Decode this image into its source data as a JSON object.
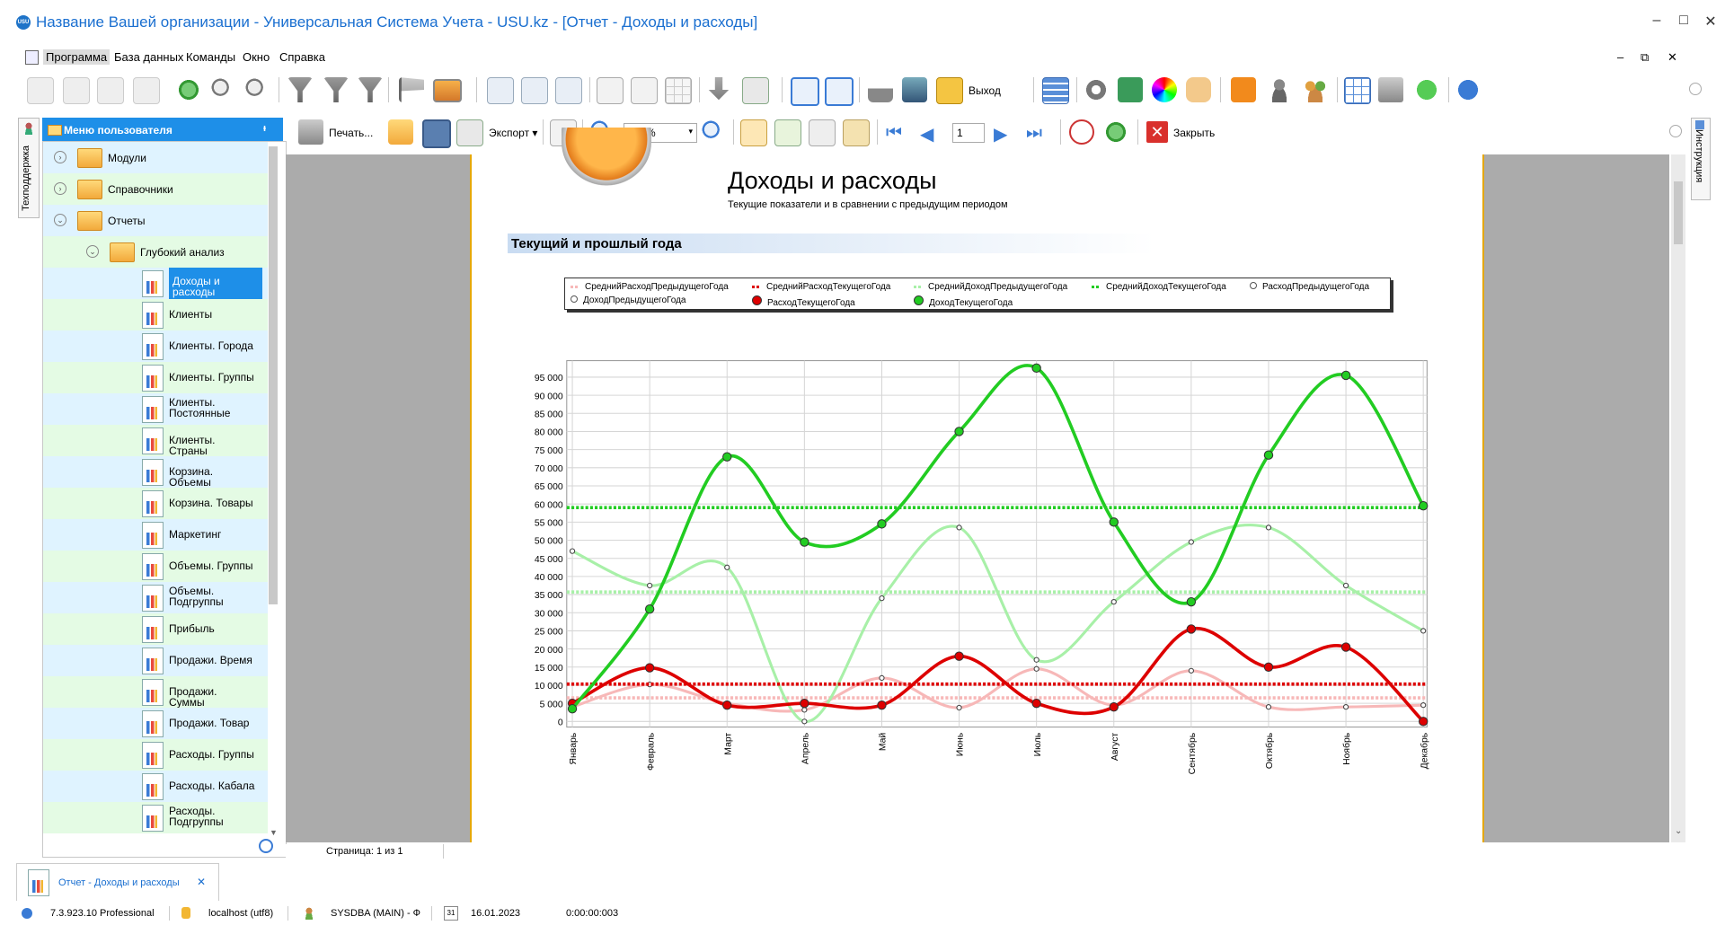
{
  "window": {
    "title": "Название Вашей организации - Универсальная Система Учета - USU.kz - [Отчет - Доходы и расходы]",
    "logo_text": "USU",
    "buttons": [
      "–",
      "□",
      "✕"
    ]
  },
  "menu": {
    "items": [
      "Программа",
      "База данных",
      "Команды",
      "Окно",
      "Справка"
    ],
    "mdi_buttons": [
      "–",
      "⧉",
      "✕"
    ]
  },
  "toolbar1": {
    "exit_label": "Выход"
  },
  "toolbar2": {
    "print_label": "Печать...",
    "export_label": "Экспорт",
    "zoom_value": "100%",
    "page_value": "1",
    "close_label": "Закрыть"
  },
  "sidebar": {
    "tech_label": "Техподдержка",
    "header": "Меню пользователя",
    "pin": "ᵻ",
    "tree": [
      {
        "label": "Модули",
        "level": 0,
        "type": "folder"
      },
      {
        "label": "Справочники",
        "level": 0,
        "type": "folder"
      },
      {
        "label": "Отчеты",
        "level": 0,
        "type": "folder"
      },
      {
        "label": "Глубокий анализ",
        "level": 1,
        "type": "folder"
      },
      {
        "label": "Доходы и расходы",
        "level": 2,
        "type": "report",
        "selected": true
      },
      {
        "label": "Клиенты",
        "level": 2,
        "type": "report"
      },
      {
        "label": "Клиенты. Города",
        "level": 2,
        "type": "report"
      },
      {
        "label": "Клиенты. Группы",
        "level": 2,
        "type": "report"
      },
      {
        "label": "Клиенты. Постоянные",
        "level": 2,
        "type": "report"
      },
      {
        "label": "Клиенты. Страны",
        "level": 2,
        "type": "report"
      },
      {
        "label": "Корзина. Объемы",
        "level": 2,
        "type": "report"
      },
      {
        "label": "Корзина. Товары",
        "level": 2,
        "type": "report"
      },
      {
        "label": "Маркетинг",
        "level": 2,
        "type": "report"
      },
      {
        "label": "Объемы. Группы",
        "level": 2,
        "type": "report"
      },
      {
        "label": "Объемы. Подгруппы",
        "level": 2,
        "type": "report"
      },
      {
        "label": "Прибыль",
        "level": 2,
        "type": "report"
      },
      {
        "label": "Продажи. Время",
        "level": 2,
        "type": "report"
      },
      {
        "label": "Продажи. Суммы",
        "level": 2,
        "type": "report"
      },
      {
        "label": "Продажи. Товар",
        "level": 2,
        "type": "report"
      },
      {
        "label": "Расходы. Группы",
        "level": 2,
        "type": "report"
      },
      {
        "label": "Расходы. Кабала",
        "level": 2,
        "type": "report"
      },
      {
        "label": "Расходы. Подгруппы",
        "level": 2,
        "type": "report"
      }
    ]
  },
  "right_panel": {
    "label": "Инструкция"
  },
  "report": {
    "title": "Доходы и расходы",
    "subtitle": "Текущие показатели и в сравнении с предыдущим периодом",
    "section": "Текущий и прошлый года"
  },
  "chart_data": {
    "type": "line",
    "categories": [
      "Январь",
      "Февраль",
      "Март",
      "Апрель",
      "Май",
      "Июнь",
      "Июль",
      "Август",
      "Сентябрь",
      "Октябрь",
      "Ноябрь",
      "Декабрь"
    ],
    "ylim": [
      0,
      98000
    ],
    "yticks": [
      0,
      5000,
      10000,
      15000,
      20000,
      25000,
      30000,
      35000,
      40000,
      45000,
      50000,
      55000,
      60000,
      65000,
      70000,
      75000,
      80000,
      85000,
      90000,
      95000
    ],
    "ytick_labels": [
      "0",
      "5 000",
      "10 000",
      "15 000",
      "20 000",
      "25 000",
      "30 000",
      "35 000",
      "40 000",
      "45 000",
      "50 000",
      "55 000",
      "60 000",
      "65 000",
      "70 000",
      "75 000",
      "80 000",
      "85 000",
      "90 000",
      "95 000"
    ],
    "grid": true,
    "legend_position": "top",
    "series": [
      {
        "name": "СреднийРасходПредыдущегоГода",
        "kind": "avg",
        "color": "#f7b8b8",
        "values": [
          6500,
          6500,
          6500,
          6500,
          6500,
          6500,
          6500,
          6500,
          6500,
          6500,
          6500,
          6500
        ]
      },
      {
        "name": "СреднийРасходТекущегоГода",
        "kind": "avg",
        "color": "#dd0000",
        "values": [
          10300,
          10300,
          10300,
          10300,
          10300,
          10300,
          10300,
          10300,
          10300,
          10300,
          10300,
          10300
        ]
      },
      {
        "name": "СреднийДоходПредыдущегоГода",
        "kind": "avg",
        "color": "#a8f0a8",
        "values": [
          35700,
          35700,
          35700,
          35700,
          35700,
          35700,
          35700,
          35700,
          35700,
          35700,
          35700,
          35700
        ]
      },
      {
        "name": "СреднийДоходТекущегоГода",
        "kind": "avg",
        "color": "#22cc22",
        "values": [
          59000,
          59000,
          59000,
          59000,
          59000,
          59000,
          59000,
          59000,
          59000,
          59000,
          59000,
          59000
        ]
      },
      {
        "name": "РасходПредыдущегоГода",
        "kind": "prev",
        "color": "#f7b8b8",
        "values": [
          4000,
          10200,
          5000,
          3200,
          12000,
          3800,
          14500,
          4500,
          14000,
          4000,
          4000,
          4500
        ]
      },
      {
        "name": "ДоходПредыдущегоГода",
        "kind": "prev",
        "color": "#a8f0a8",
        "values": [
          47000,
          37500,
          42500,
          0,
          34000,
          53500,
          17000,
          33000,
          49500,
          53500,
          37500,
          25000
        ]
      },
      {
        "name": "РасходТекущегоГода",
        "kind": "cur",
        "color": "#dd0000",
        "values": [
          5000,
          14800,
          4500,
          5000,
          4500,
          18000,
          5000,
          4000,
          25500,
          15000,
          20500,
          0
        ]
      },
      {
        "name": "ДоходТекущегоГода",
        "kind": "cur",
        "color": "#22cc22",
        "values": [
          3500,
          31000,
          73000,
          49500,
          54500,
          80000,
          97500,
          55000,
          33000,
          73500,
          95500,
          59500
        ]
      }
    ]
  },
  "pagebar": {
    "label": "Страница: 1 из 1"
  },
  "doc_tab": {
    "label": "Отчет - Доходы и расходы",
    "close": "✕"
  },
  "status": {
    "version": "7.3.923.10 Professional",
    "server": "localhost (utf8)",
    "user": "SYSDBA (MAIN) - Ф",
    "date_icon": "31",
    "date": "16.01.2023",
    "timer": "0:00:00:003"
  }
}
